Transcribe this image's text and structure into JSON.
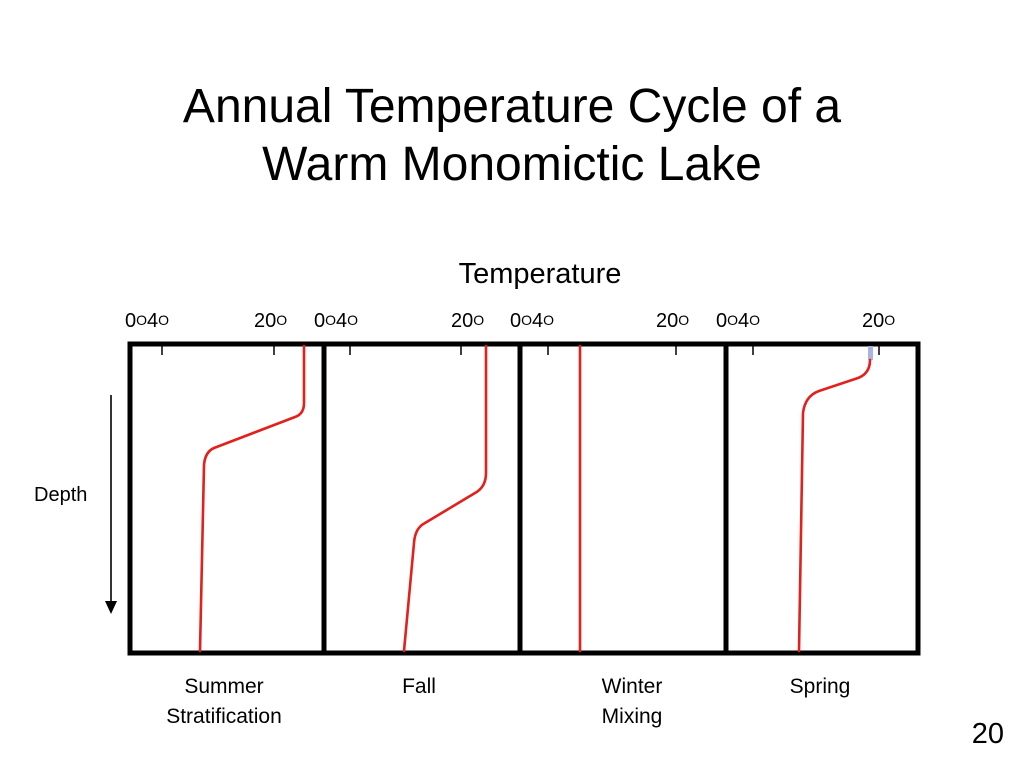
{
  "title": {
    "line1": "Annual Temperature Cycle of a",
    "line2": "Warm Monomictic Lake"
  },
  "axis_title": "Temperature",
  "depth_label": "Depth",
  "degree_symbol": "O",
  "panels": [
    {
      "season_line1": "Summer",
      "season_line2": "Stratification",
      "tick_zero": "0",
      "tick_four": "4",
      "tick_twenty": "20"
    },
    {
      "season_line1": "Fall",
      "season_line2": "",
      "tick_zero": "0",
      "tick_four": "4",
      "tick_twenty": "20"
    },
    {
      "season_line1": "Winter",
      "season_line2": "Mixing",
      "tick_zero": "0",
      "tick_four": "4",
      "tick_twenty": "20"
    },
    {
      "season_line1": "Spring",
      "season_line2": "",
      "tick_zero": "0",
      "tick_four": "4",
      "tick_twenty": "20"
    }
  ],
  "page_number": "20",
  "colors": {
    "profile_line": "#e3201b",
    "frame": "#000000",
    "spring_surface_mark": "#aab4e0"
  }
}
